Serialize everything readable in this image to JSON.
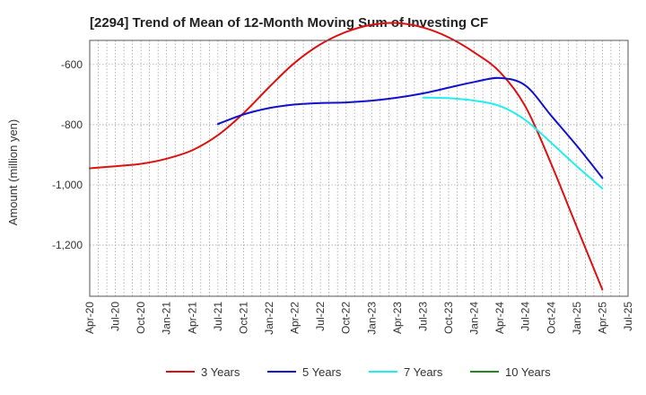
{
  "chart_data": {
    "type": "line",
    "title": "[2294]  Trend of Mean of 12-Month Moving Sum of Investing CF",
    "xlabel": "",
    "ylabel": "Amount (million yen)",
    "ylim": [
      -1370,
      -520
    ],
    "y_ticks": [
      -600,
      -800,
      -1000,
      -1200
    ],
    "y_tick_labels": [
      "-600",
      "-800",
      "-1,000",
      "-1,200"
    ],
    "categories": [
      "Apr-20",
      "Jul-20",
      "Oct-20",
      "Jan-21",
      "Apr-21",
      "Jul-21",
      "Oct-21",
      "Jan-22",
      "Apr-22",
      "Jul-22",
      "Oct-22",
      "Jan-23",
      "Apr-23",
      "Jul-23",
      "Oct-23",
      "Jan-24",
      "Apr-24",
      "Jul-24",
      "Oct-24",
      "Jan-25",
      "Apr-25",
      "Jul-25"
    ],
    "grid": true,
    "legend_position": "bottom",
    "series": [
      {
        "name": "3 Years",
        "color": "#dd1111",
        "values": [
          -945,
          -938,
          -930,
          -913,
          -885,
          -835,
          -762,
          -675,
          -594,
          -533,
          -492,
          -468,
          -462,
          -477,
          -510,
          -560,
          -625,
          -740,
          -930,
          -1140,
          -1348,
          null
        ]
      },
      {
        "name": "5 Years",
        "color": "#1111cc",
        "values": [
          null,
          null,
          null,
          null,
          null,
          -798,
          -766,
          -745,
          -733,
          -728,
          -726,
          -720,
          -710,
          -696,
          -677,
          -658,
          -645,
          -670,
          -770,
          -870,
          -977,
          null
        ]
      },
      {
        "name": "7 Years",
        "color": "#22eeee",
        "values": [
          null,
          null,
          null,
          null,
          null,
          null,
          null,
          null,
          null,
          null,
          null,
          null,
          null,
          -710,
          -712,
          -720,
          -738,
          -785,
          -860,
          -938,
          -1012,
          null
        ]
      },
      {
        "name": "10 Years",
        "color": "#228822",
        "values": [
          null,
          null,
          null,
          null,
          null,
          null,
          null,
          null,
          null,
          null,
          null,
          null,
          null,
          null,
          null,
          null,
          null,
          null,
          null,
          null,
          null,
          null
        ]
      }
    ]
  }
}
